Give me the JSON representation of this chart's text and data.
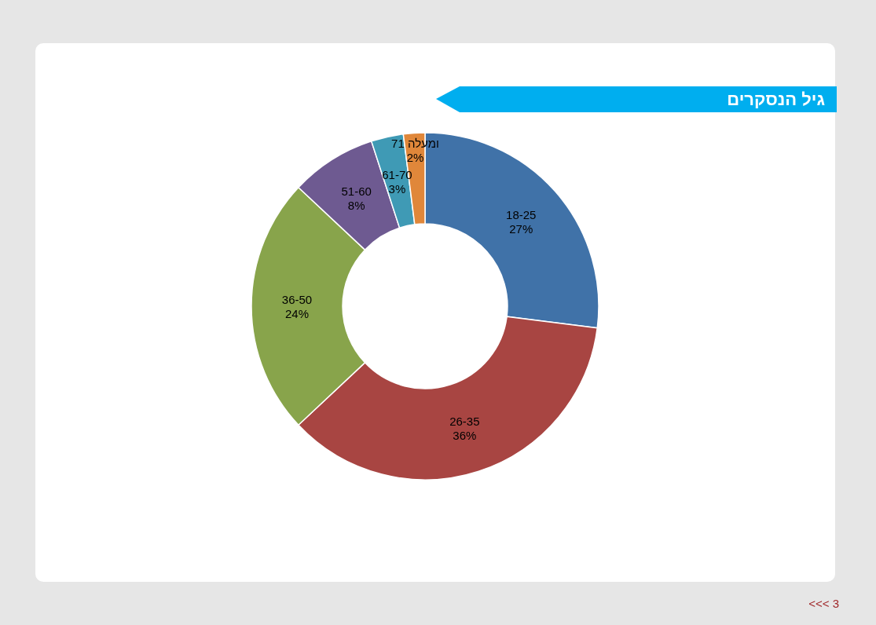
{
  "chart_data": {
    "type": "donut",
    "title": "גיל הנסקרים",
    "categories": [
      "18-25",
      "26-35",
      "36-50",
      "51-60",
      "61-70",
      "71 ומעלה"
    ],
    "values": [
      27,
      36,
      24,
      8,
      3,
      2
    ],
    "value_labels": [
      "27%",
      "36%",
      "24%",
      "8%",
      "3%",
      "2%"
    ],
    "colors": [
      "#4072a8",
      "#a84542",
      "#88a44b",
      "#6e5a91",
      "#3f9ab5",
      "#e0873a"
    ],
    "legend": false,
    "annotations": [
      "<<< 3"
    ]
  }
}
